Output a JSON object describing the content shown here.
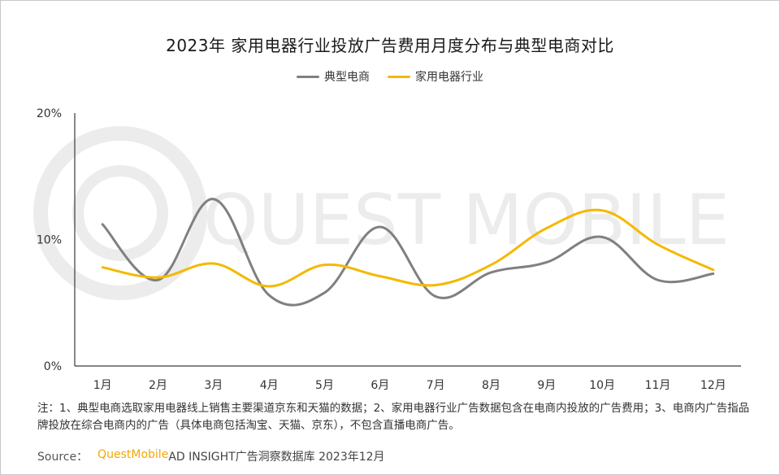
{
  "chart_data": {
    "type": "line",
    "title": "2023年 家用电器行业投放广告费用月度分布与典型电商对比",
    "categories": [
      "1月",
      "2月",
      "3月",
      "4月",
      "5月",
      "6月",
      "7月",
      "8月",
      "9月",
      "10月",
      "11月",
      "12月"
    ],
    "series": [
      {
        "name": "典型电商",
        "color": "#808080",
        "values": [
          11.2,
          6.8,
          13.2,
          5.6,
          5.8,
          11.0,
          5.5,
          7.4,
          8.2,
          10.2,
          6.8,
          7.3
        ]
      },
      {
        "name": "家用电器行业",
        "color": "#F5B800",
        "values": [
          7.8,
          7.0,
          8.1,
          6.3,
          8.0,
          7.1,
          6.4,
          8.0,
          10.9,
          12.3,
          9.6,
          7.6
        ]
      }
    ],
    "ylim": [
      0,
      20
    ],
    "yticks": [
      "0%",
      "10%",
      "20%"
    ],
    "legend_position": "top-center",
    "grid": false
  },
  "note": "注：1、典型电商选取家用电器线上销售主要渠道京东和天猫的数据；2、家用电器行业广告数据包含在电商内投放的广告费用；3、电商内广告指品牌投放在综合电商内的广告（具体电商包括淘宝、天猫、京东），不包含直播电商广告。",
  "source": {
    "label": "Source：",
    "brand": "QuestMobile",
    "rest": " AD INSIGHT广告洞察数据库 2023年12月"
  },
  "watermark": "QUEST MOBILE"
}
